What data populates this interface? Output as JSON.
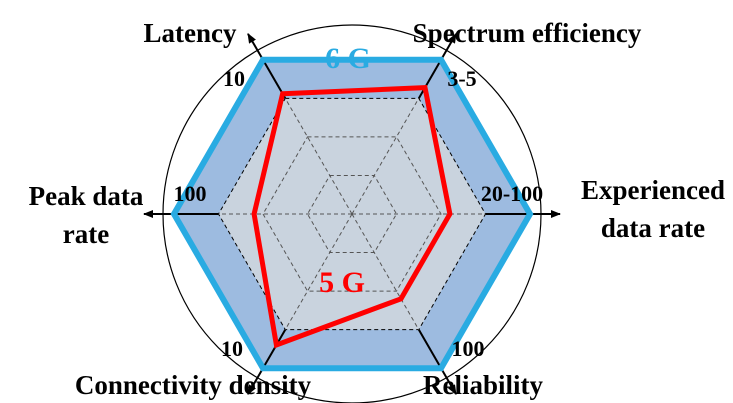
{
  "chart_data": {
    "type": "radar",
    "axes": [
      {
        "label_lines": [
          "Latency"
        ],
        "tick": "10"
      },
      {
        "label_lines": [
          "Spectrum efficiency"
        ],
        "tick": "3-5"
      },
      {
        "label_lines": [
          "Experienced",
          "data rate"
        ],
        "tick": "20-100"
      },
      {
        "label_lines": [
          "Reliability"
        ],
        "tick": "100"
      },
      {
        "label_lines": [
          "Connectivity density"
        ],
        "tick": "10"
      },
      {
        "label_lines": [
          "Peak data",
          "rate"
        ],
        "tick": "100"
      }
    ],
    "rlim": [
      0,
      1
    ],
    "grid_levels": [
      0.25,
      0.5,
      0.75
    ],
    "series": [
      {
        "name": "6 G",
        "values": [
          1.0,
          1.0,
          1.0,
          1.0,
          1.0,
          1.0
        ],
        "color": "#29abe2",
        "fill": "#9dbbe0"
      },
      {
        "name": "5 G",
        "values": [
          0.78,
          0.82,
          0.55,
          0.55,
          0.85,
          0.55
        ],
        "color": "#ff0000"
      }
    ],
    "inner_fill": "#c9d3de",
    "outer_circle_color": "#000000"
  }
}
